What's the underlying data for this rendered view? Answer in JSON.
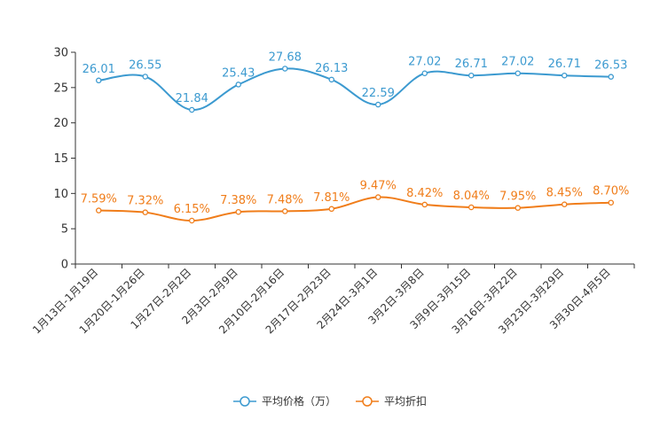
{
  "chart_data": {
    "type": "line",
    "title": "",
    "xlabel": "",
    "ylabel": "",
    "ylim": [
      0,
      30
    ],
    "yticks": [
      0,
      5,
      10,
      15,
      20,
      25,
      30
    ],
    "grid": false,
    "legend_position": "bottom-center",
    "categories": [
      "1月13日-1月19日",
      "1月20日-1月26日",
      "1月27日-2月2日",
      "2月3日-2月9日",
      "2月10日-2月16日",
      "2月17日-2月23日",
      "2月24日-3月1日",
      "3月2日-3月8日",
      "3月9日-3月15日",
      "3月16日-3月22日",
      "3月23日-3月29日",
      "3月30日-4月5日"
    ],
    "series": [
      {
        "name": "平均价格（万）",
        "color": "#3c9ad0",
        "values": [
          26.01,
          26.55,
          21.84,
          25.43,
          27.68,
          26.13,
          22.59,
          27.02,
          26.71,
          27.02,
          26.71,
          26.53
        ],
        "labels": [
          "26.01",
          "26.55",
          "21.84",
          "25.43",
          "27.68",
          "26.13",
          "22.59",
          "27.02",
          "26.71",
          "27.02",
          "26.71",
          "26.53"
        ]
      },
      {
        "name": "平均折扣",
        "color": "#f07d1a",
        "values": [
          7.59,
          7.32,
          6.15,
          7.38,
          7.48,
          7.81,
          9.47,
          8.42,
          8.04,
          7.95,
          8.45,
          8.7
        ],
        "labels": [
          "7.59%",
          "7.32%",
          "6.15%",
          "7.38%",
          "7.48%",
          "7.81%",
          "9.47%",
          "8.42%",
          "8.04%",
          "7.95%",
          "8.45%",
          "8.70%"
        ]
      }
    ]
  }
}
